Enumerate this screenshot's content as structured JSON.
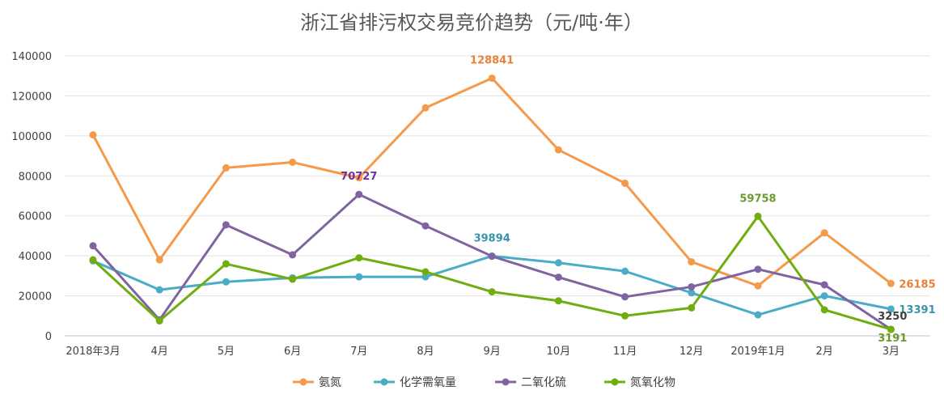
{
  "chart_data": {
    "type": "line",
    "title": "浙江省排污权交易竞价趋势（元/吨·年）",
    "categories": [
      "2018年3月",
      "4月",
      "5月",
      "6月",
      "7月",
      "8月",
      "9月",
      "10月",
      "11月",
      "12月",
      "2019年1月",
      "2月",
      "3月"
    ],
    "ylim": [
      0,
      140000
    ],
    "yticks": [
      "0",
      "20000",
      "40000",
      "60000",
      "80000",
      "100000",
      "120000",
      "140000"
    ],
    "grid": true,
    "legend_position": "bottom",
    "series": [
      {
        "name": "氨氮",
        "color": "#f59a4a",
        "values": [
          100500,
          38000,
          84000,
          86800,
          79000,
          114000,
          128841,
          93000,
          76300,
          37000,
          25000,
          51500,
          26185
        ]
      },
      {
        "name": "化学需氧量",
        "color": "#4bacc6",
        "values": [
          37500,
          23000,
          27000,
          29000,
          29500,
          29500,
          39894,
          36500,
          32300,
          21500,
          10500,
          20000,
          13391
        ]
      },
      {
        "name": "二氧化硫",
        "color": "#8064a2",
        "values": [
          45000,
          8000,
          55500,
          40500,
          70727,
          55000,
          39800,
          29300,
          19500,
          24500,
          33300,
          25500,
          3250
        ]
      },
      {
        "name": "氮氧化物",
        "color": "#70ad0f",
        "values": [
          38000,
          7500,
          36000,
          28300,
          39000,
          32000,
          22000,
          17500,
          10000,
          14000,
          59758,
          13000,
          3191
        ]
      }
    ],
    "data_labels": [
      {
        "text": "128841",
        "color": "#e8803a"
      },
      {
        "text": "70727",
        "color": "#7030a0"
      },
      {
        "text": "39894",
        "color": "#3a93ad"
      },
      {
        "text": "59758",
        "color": "#6a9a2a"
      },
      {
        "text": "26185",
        "color": "#e8803a"
      },
      {
        "text": "13391",
        "color": "#3a93ad"
      },
      {
        "text": "3250",
        "color": "#404040"
      },
      {
        "text": "3191",
        "color": "#6a9a2a"
      }
    ]
  }
}
